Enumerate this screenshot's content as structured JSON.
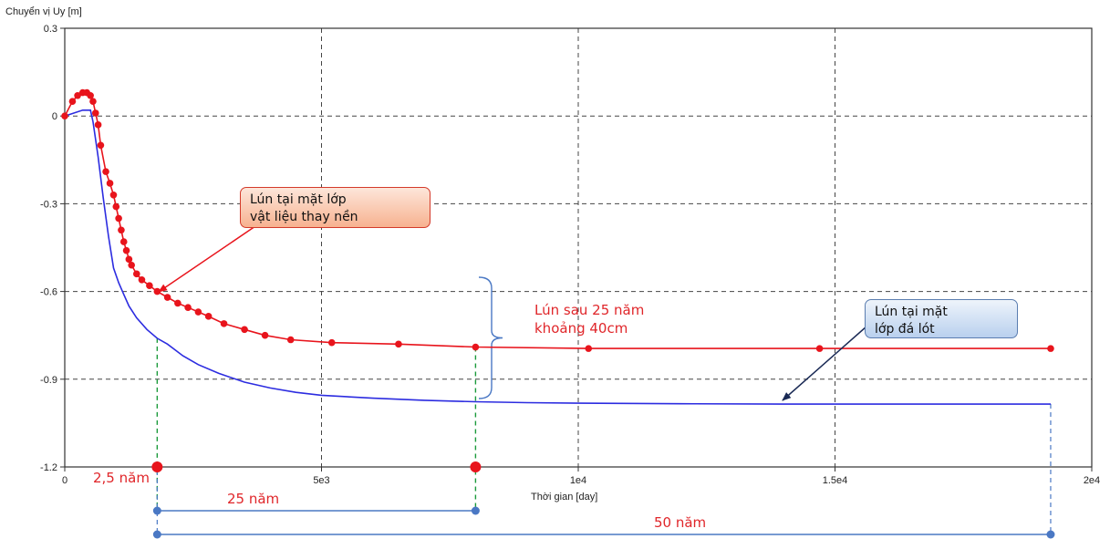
{
  "chart_data": {
    "type": "line",
    "title": "",
    "ylabel": "Chuyển vị Uy [m]",
    "xlabel": "Thời gian [day]",
    "xlim": [
      0,
      20000
    ],
    "ylim": [
      -1.2,
      0.3
    ],
    "x_ticks": [
      "0",
      "5e3",
      "1e4",
      "1.5e4",
      "2e4"
    ],
    "y_ticks": [
      "0.3",
      "0",
      "-0.3",
      "-0.6",
      "-0.9",
      "-1.2"
    ],
    "grid": true,
    "series": [
      {
        "color": "#e8141c",
        "marker": "circle",
        "x": [
          0,
          150,
          250,
          350,
          430,
          500,
          550,
          600,
          650,
          700,
          800,
          880,
          950,
          1000,
          1050,
          1100,
          1150,
          1200,
          1250,
          1300,
          1400,
          1500,
          1650,
          1800,
          2000,
          2200,
          2400,
          2600,
          2800,
          3100,
          3500,
          3900,
          4400,
          5200,
          6500,
          8000,
          10200,
          14700,
          19200
        ],
        "y": [
          0,
          0.05,
          0.07,
          0.08,
          0.08,
          0.07,
          0.05,
          0.01,
          -0.03,
          -0.1,
          -0.19,
          -0.23,
          -0.27,
          -0.31,
          -0.35,
          -0.39,
          -0.43,
          -0.46,
          -0.49,
          -0.51,
          -0.54,
          -0.56,
          -0.58,
          -0.6,
          -0.62,
          -0.64,
          -0.655,
          -0.67,
          -0.685,
          -0.71,
          -0.73,
          -0.75,
          -0.765,
          -0.775,
          -0.78,
          -0.79,
          -0.795,
          -0.795,
          -0.795
        ]
      },
      {
        "color": "#2c2ce0",
        "marker": "none",
        "x": [
          0,
          350,
          500,
          550,
          650,
          750,
          850,
          950,
          1050,
          1150,
          1250,
          1400,
          1600,
          1800,
          2000,
          2300,
          2600,
          3000,
          3500,
          4000,
          4500,
          5000,
          6000,
          7000,
          8000,
          9000,
          10000,
          12000,
          14000,
          17000,
          19200
        ],
        "y": [
          0,
          0.02,
          0.02,
          -0.02,
          -0.14,
          -0.28,
          -0.41,
          -0.52,
          -0.57,
          -0.61,
          -0.65,
          -0.69,
          -0.73,
          -0.76,
          -0.78,
          -0.82,
          -0.85,
          -0.88,
          -0.91,
          -0.93,
          -0.945,
          -0.955,
          -0.965,
          -0.972,
          -0.977,
          -0.98,
          -0.982,
          -0.984,
          -0.985,
          -0.985,
          -0.985
        ]
      }
    ],
    "annotations": {
      "callout_red": "Lún tại mặt lớp\nvật liệu thay nền",
      "callout_blue": "Lún tại mặt\nlớp đá lót",
      "settlement_note": "Lún sau 25 năm\nkhoảng 40cm",
      "year_2_5": "2,5 năm",
      "year_25": "25 năm",
      "year_50": "50 năm",
      "year_markers_x": [
        1800,
        8000,
        19200
      ]
    }
  }
}
